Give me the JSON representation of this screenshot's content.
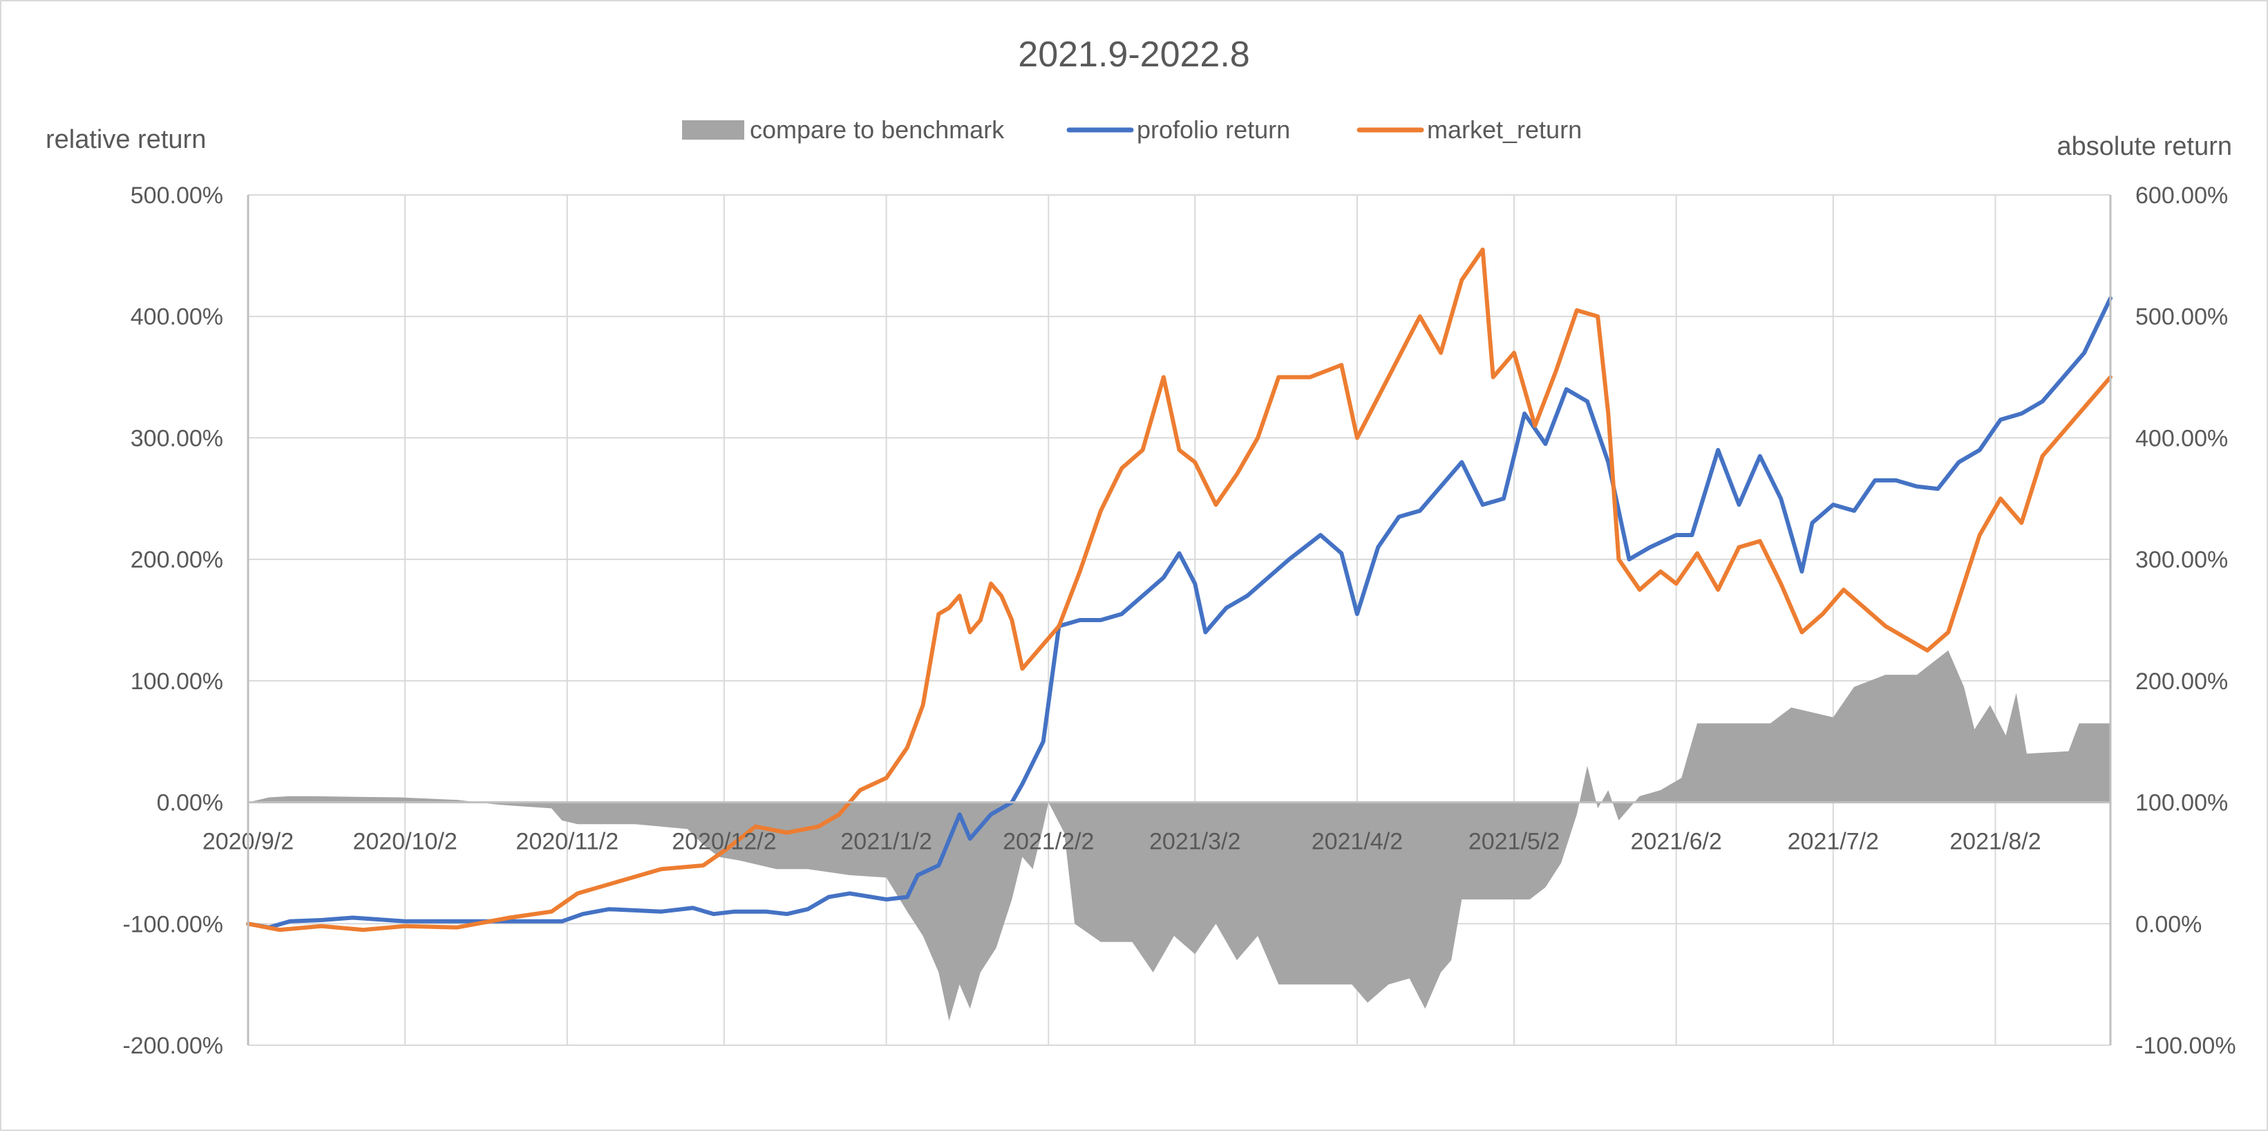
{
  "chart_data": {
    "type": "line",
    "title": "2021.9-2022.8",
    "left_axis": {
      "label": "relative return",
      "min": -200,
      "max": 500,
      "step": 100,
      "ticks": [
        "-200.00%",
        "-100.00%",
        "0.00%",
        "100.00%",
        "200.00%",
        "300.00%",
        "400.00%",
        "500.00%"
      ]
    },
    "right_axis": {
      "label": "absolute return",
      "min": -100,
      "max": 600,
      "step": 100,
      "ticks": [
        "-100.00%",
        "0.00%",
        "100.00%",
        "200.00%",
        "300.00%",
        "400.00%",
        "500.00%",
        "600.00%"
      ]
    },
    "x_axis": {
      "start": "2020-09-02",
      "end": "2021-08-24",
      "ticks": [
        {
          "label": "2020/9/2",
          "date": "2020-09-02"
        },
        {
          "label": "2020/10/2",
          "date": "2020-10-02"
        },
        {
          "label": "2020/11/2",
          "date": "2020-11-02"
        },
        {
          "label": "2020/12/2",
          "date": "2020-12-02"
        },
        {
          "label": "2021/1/2",
          "date": "2021-01-02"
        },
        {
          "label": "2021/2/2",
          "date": "2021-02-02"
        },
        {
          "label": "2021/3/2",
          "date": "2021-03-02"
        },
        {
          "label": "2021/4/2",
          "date": "2021-04-02"
        },
        {
          "label": "2021/5/2",
          "date": "2021-05-02"
        },
        {
          "label": "2021/6/2",
          "date": "2021-06-02"
        },
        {
          "label": "2021/7/2",
          "date": "2021-07-02"
        },
        {
          "label": "2021/8/2",
          "date": "2021-08-02"
        }
      ]
    },
    "grid": true,
    "legend_position": "top-center",
    "series": [
      {
        "name": "compare to benchmark",
        "kind": "area",
        "axis": "left",
        "color": "#a5a5a5",
        "points": [
          [
            "2020-09-02",
            0
          ],
          [
            "2020-09-06",
            4
          ],
          [
            "2020-09-10",
            5
          ],
          [
            "2020-09-14",
            5
          ],
          [
            "2020-10-01",
            4
          ],
          [
            "2020-10-12",
            2
          ],
          [
            "2020-10-20",
            -2
          ],
          [
            "2020-10-30",
            -5
          ],
          [
            "2020-11-01",
            -15
          ],
          [
            "2020-11-04",
            -18
          ],
          [
            "2020-11-15",
            -18
          ],
          [
            "2020-11-25",
            -22
          ],
          [
            "2020-11-28",
            -35
          ],
          [
            "2020-12-01",
            -45
          ],
          [
            "2020-12-05",
            -48
          ],
          [
            "2020-12-12",
            -55
          ],
          [
            "2020-12-18",
            -55
          ],
          [
            "2020-12-26",
            -60
          ],
          [
            "2021-01-02",
            -62
          ],
          [
            "2021-01-06",
            -90
          ],
          [
            "2021-01-09",
            -110
          ],
          [
            "2021-01-12",
            -140
          ],
          [
            "2021-01-14",
            -180
          ],
          [
            "2021-01-16",
            -150
          ],
          [
            "2021-01-18",
            -170
          ],
          [
            "2021-01-20",
            -140
          ],
          [
            "2021-01-23",
            -120
          ],
          [
            "2021-01-26",
            -80
          ],
          [
            "2021-01-28",
            -45
          ],
          [
            "2021-01-30",
            -55
          ],
          [
            "2021-02-01",
            -20
          ],
          [
            "2021-02-02",
            0
          ],
          [
            "2021-02-05",
            -25
          ],
          [
            "2021-02-07",
            -100
          ],
          [
            "2021-02-12",
            -115
          ],
          [
            "2021-02-18",
            -115
          ],
          [
            "2021-02-22",
            -140
          ],
          [
            "2021-02-26",
            -110
          ],
          [
            "2021-03-02",
            -125
          ],
          [
            "2021-03-06",
            -100
          ],
          [
            "2021-03-10",
            -130
          ],
          [
            "2021-03-14",
            -110
          ],
          [
            "2021-03-18",
            -150
          ],
          [
            "2021-03-24",
            -150
          ],
          [
            "2021-04-01",
            -150
          ],
          [
            "2021-04-04",
            -165
          ],
          [
            "2021-04-08",
            -150
          ],
          [
            "2021-04-12",
            -145
          ],
          [
            "2021-04-15",
            -170
          ],
          [
            "2021-04-18",
            -140
          ],
          [
            "2021-04-20",
            -130
          ],
          [
            "2021-04-22",
            -80
          ],
          [
            "2021-05-01",
            -80
          ],
          [
            "2021-05-05",
            -80
          ],
          [
            "2021-05-08",
            -70
          ],
          [
            "2021-05-11",
            -50
          ],
          [
            "2021-05-14",
            -10
          ],
          [
            "2021-05-16",
            30
          ],
          [
            "2021-05-18",
            -5
          ],
          [
            "2021-05-20",
            10
          ],
          [
            "2021-05-22",
            -15
          ],
          [
            "2021-05-26",
            5
          ],
          [
            "2021-05-30",
            10
          ],
          [
            "2021-06-03",
            20
          ],
          [
            "2021-06-06",
            65
          ],
          [
            "2021-06-20",
            65
          ],
          [
            "2021-06-24",
            78
          ],
          [
            "2021-07-02",
            70
          ],
          [
            "2021-07-06",
            95
          ],
          [
            "2021-07-12",
            105
          ],
          [
            "2021-07-18",
            105
          ],
          [
            "2021-07-24",
            125
          ],
          [
            "2021-07-27",
            95
          ],
          [
            "2021-07-29",
            60
          ],
          [
            "2021-08-01",
            80
          ],
          [
            "2021-08-04",
            55
          ],
          [
            "2021-08-06",
            90
          ],
          [
            "2021-08-08",
            40
          ],
          [
            "2021-08-16",
            42
          ],
          [
            "2021-08-18",
            65
          ],
          [
            "2021-08-24",
            65
          ]
        ]
      },
      {
        "name": "profolio return",
        "kind": "line",
        "axis": "right",
        "color": "#4472c4",
        "points": [
          [
            "2020-09-02",
            0
          ],
          [
            "2020-09-06",
            -3
          ],
          [
            "2020-09-10",
            2
          ],
          [
            "2020-09-16",
            3
          ],
          [
            "2020-09-22",
            5
          ],
          [
            "2020-10-02",
            2
          ],
          [
            "2020-10-18",
            2
          ],
          [
            "2020-11-01",
            2
          ],
          [
            "2020-11-05",
            8
          ],
          [
            "2020-11-10",
            12
          ],
          [
            "2020-11-20",
            10
          ],
          [
            "2020-11-26",
            13
          ],
          [
            "2020-11-30",
            8
          ],
          [
            "2020-12-04",
            10
          ],
          [
            "2020-12-10",
            10
          ],
          [
            "2020-12-14",
            8
          ],
          [
            "2020-12-18",
            12
          ],
          [
            "2020-12-22",
            22
          ],
          [
            "2020-12-26",
            25
          ],
          [
            "2021-01-02",
            20
          ],
          [
            "2021-01-06",
            22
          ],
          [
            "2021-01-08",
            40
          ],
          [
            "2021-01-12",
            48
          ],
          [
            "2021-01-16",
            90
          ],
          [
            "2021-01-18",
            70
          ],
          [
            "2021-01-22",
            90
          ],
          [
            "2021-01-26",
            100
          ],
          [
            "2021-01-28",
            115
          ],
          [
            "2021-02-01",
            150
          ],
          [
            "2021-02-04",
            245
          ],
          [
            "2021-02-08",
            250
          ],
          [
            "2021-02-12",
            250
          ],
          [
            "2021-02-16",
            255
          ],
          [
            "2021-02-20",
            270
          ],
          [
            "2021-02-24",
            285
          ],
          [
            "2021-02-27",
            305
          ],
          [
            "2021-03-02",
            280
          ],
          [
            "2021-03-04",
            240
          ],
          [
            "2021-03-08",
            260
          ],
          [
            "2021-03-12",
            270
          ],
          [
            "2021-03-16",
            285
          ],
          [
            "2021-03-20",
            300
          ],
          [
            "2021-03-26",
            320
          ],
          [
            "2021-03-30",
            305
          ],
          [
            "2021-04-02",
            255
          ],
          [
            "2021-04-06",
            310
          ],
          [
            "2021-04-10",
            335
          ],
          [
            "2021-04-14",
            340
          ],
          [
            "2021-04-18",
            360
          ],
          [
            "2021-04-22",
            380
          ],
          [
            "2021-04-26",
            345
          ],
          [
            "2021-04-30",
            350
          ],
          [
            "2021-05-04",
            420
          ],
          [
            "2021-05-08",
            395
          ],
          [
            "2021-05-12",
            440
          ],
          [
            "2021-05-16",
            430
          ],
          [
            "2021-05-20",
            380
          ],
          [
            "2021-05-24",
            300
          ],
          [
            "2021-05-28",
            310
          ],
          [
            "2021-06-02",
            320
          ],
          [
            "2021-06-05",
            320
          ],
          [
            "2021-06-10",
            390
          ],
          [
            "2021-06-14",
            345
          ],
          [
            "2021-06-18",
            385
          ],
          [
            "2021-06-22",
            350
          ],
          [
            "2021-06-26",
            290
          ],
          [
            "2021-06-28",
            330
          ],
          [
            "2021-07-02",
            345
          ],
          [
            "2021-07-06",
            340
          ],
          [
            "2021-07-10",
            365
          ],
          [
            "2021-07-14",
            365
          ],
          [
            "2021-07-18",
            360
          ],
          [
            "2021-07-22",
            358
          ],
          [
            "2021-07-26",
            380
          ],
          [
            "2021-07-30",
            390
          ],
          [
            "2021-08-03",
            415
          ],
          [
            "2021-08-07",
            420
          ],
          [
            "2021-08-11",
            430
          ],
          [
            "2021-08-15",
            450
          ],
          [
            "2021-08-19",
            470
          ],
          [
            "2021-08-24",
            515
          ]
        ]
      },
      {
        "name": "market_return",
        "kind": "line",
        "axis": "right",
        "color": "#ed7d31",
        "points": [
          [
            "2020-09-02",
            0
          ],
          [
            "2020-09-08",
            -5
          ],
          [
            "2020-09-16",
            -2
          ],
          [
            "2020-09-24",
            -5
          ],
          [
            "2020-10-02",
            -2
          ],
          [
            "2020-10-12",
            -3
          ],
          [
            "2020-10-22",
            5
          ],
          [
            "2020-10-30",
            10
          ],
          [
            "2020-11-04",
            25
          ],
          [
            "2020-11-12",
            35
          ],
          [
            "2020-11-20",
            45
          ],
          [
            "2020-11-28",
            48
          ],
          [
            "2020-12-02",
            60
          ],
          [
            "2020-12-08",
            80
          ],
          [
            "2020-12-14",
            75
          ],
          [
            "2020-12-20",
            80
          ],
          [
            "2020-12-24",
            90
          ],
          [
            "2020-12-28",
            110
          ],
          [
            "2021-01-02",
            120
          ],
          [
            "2021-01-06",
            145
          ],
          [
            "2021-01-09",
            180
          ],
          [
            "2021-01-12",
            255
          ],
          [
            "2021-01-14",
            260
          ],
          [
            "2021-01-16",
            270
          ],
          [
            "2021-01-18",
            240
          ],
          [
            "2021-01-20",
            250
          ],
          [
            "2021-01-22",
            280
          ],
          [
            "2021-01-24",
            270
          ],
          [
            "2021-01-26",
            250
          ],
          [
            "2021-01-28",
            210
          ],
          [
            "2021-02-01",
            230
          ],
          [
            "2021-02-04",
            245
          ],
          [
            "2021-02-08",
            290
          ],
          [
            "2021-02-12",
            340
          ],
          [
            "2021-02-16",
            375
          ],
          [
            "2021-02-20",
            390
          ],
          [
            "2021-02-24",
            450
          ],
          [
            "2021-02-27",
            390
          ],
          [
            "2021-03-02",
            380
          ],
          [
            "2021-03-06",
            345
          ],
          [
            "2021-03-10",
            370
          ],
          [
            "2021-03-14",
            400
          ],
          [
            "2021-03-18",
            450
          ],
          [
            "2021-03-24",
            450
          ],
          [
            "2021-03-30",
            460
          ],
          [
            "2021-04-02",
            400
          ],
          [
            "2021-04-08",
            450
          ],
          [
            "2021-04-14",
            500
          ],
          [
            "2021-04-18",
            470
          ],
          [
            "2021-04-22",
            530
          ],
          [
            "2021-04-26",
            555
          ],
          [
            "2021-04-28",
            450
          ],
          [
            "2021-05-02",
            470
          ],
          [
            "2021-05-06",
            410
          ],
          [
            "2021-05-10",
            455
          ],
          [
            "2021-05-14",
            505
          ],
          [
            "2021-05-18",
            500
          ],
          [
            "2021-05-20",
            420
          ],
          [
            "2021-05-22",
            300
          ],
          [
            "2021-05-26",
            275
          ],
          [
            "2021-05-30",
            290
          ],
          [
            "2021-06-02",
            280
          ],
          [
            "2021-06-06",
            305
          ],
          [
            "2021-06-10",
            275
          ],
          [
            "2021-06-14",
            310
          ],
          [
            "2021-06-18",
            315
          ],
          [
            "2021-06-22",
            280
          ],
          [
            "2021-06-26",
            240
          ],
          [
            "2021-06-30",
            255
          ],
          [
            "2021-07-04",
            275
          ],
          [
            "2021-07-08",
            260
          ],
          [
            "2021-07-12",
            245
          ],
          [
            "2021-07-16",
            235
          ],
          [
            "2021-07-20",
            225
          ],
          [
            "2021-07-24",
            240
          ],
          [
            "2021-07-30",
            320
          ],
          [
            "2021-08-03",
            350
          ],
          [
            "2021-08-07",
            330
          ],
          [
            "2021-08-11",
            385
          ],
          [
            "2021-08-15",
            405
          ],
          [
            "2021-08-19",
            425
          ],
          [
            "2021-08-24",
            450
          ]
        ]
      }
    ]
  }
}
